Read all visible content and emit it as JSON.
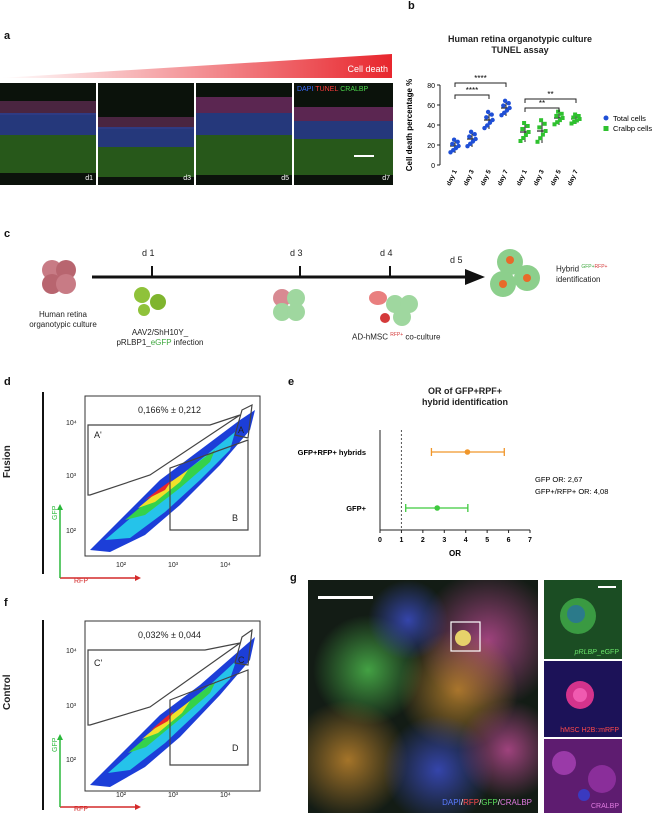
{
  "panels": {
    "a": "a",
    "b": "b",
    "c": "c",
    "d": "d",
    "e": "e",
    "f": "f",
    "g": "g"
  },
  "panel_a": {
    "gradient_label": "Cell death",
    "stain_dapi": "DAPI",
    "stain_tunel": "TUNEL",
    "stain_cralbp": "CRALBP",
    "days": [
      "d1",
      "d3",
      "d5",
      "d7"
    ],
    "colors": {
      "dapi": "#3b6cff",
      "tunel": "#ff3b3b",
      "cralbp": "#4ddc4d",
      "gradient": "#e8262d"
    }
  },
  "panel_b": {
    "title_line1": "Human retina organotypic culture",
    "title_line2": "TUNEL assay",
    "ylabel": "Cell death percentage %",
    "yticks": [
      "0",
      "20",
      "40",
      "60",
      "80"
    ],
    "categories": [
      "day 1",
      "day 3",
      "day 5",
      "day 7",
      "day 1",
      "day 3",
      "day 5",
      "day 7"
    ],
    "legend_total": "Total cells",
    "legend_cralbp": "Cralbp cells",
    "sig_1": "****",
    "sig_2": "****",
    "sig_3": "**",
    "sig_4": "**"
  },
  "chart_data": [
    {
      "type": "scatter",
      "title": "Human retina organotypic culture TUNEL assay",
      "ylabel": "Cell death percentage %",
      "ylim": [
        0,
        80
      ],
      "categories": [
        "day 1",
        "day 3",
        "day 5",
        "day 7",
        "day 1",
        "day 3",
        "day 5",
        "day 7"
      ],
      "series": [
        {
          "name": "Total cells",
          "color": "#1f4fd6",
          "means": [
            19,
            26,
            45,
            57
          ],
          "sd": [
            7,
            8,
            9,
            8
          ]
        },
        {
          "name": "Cralbp cells",
          "color": "#2ec12e",
          "means": [
            33,
            34,
            47,
            46
          ],
          "sd": [
            10,
            12,
            7,
            5
          ]
        }
      ]
    },
    {
      "type": "scatter",
      "title": "OR of GFP+RPF+ hybrid identification",
      "xlabel": "OR",
      "xlim": [
        0,
        7
      ],
      "xticks": [
        0,
        1,
        2,
        3,
        4,
        5,
        6,
        7
      ],
      "categories": [
        "GFP+RFP+ hybrids",
        "GFP+"
      ],
      "values": [
        4.08,
        2.67
      ],
      "ci": [
        [
          2.4,
          5.8
        ],
        [
          1.2,
          4.1
        ]
      ],
      "colors": [
        "#f0962a",
        "#3fc93f"
      ]
    }
  ],
  "panel_c": {
    "d1": "d 1",
    "d3": "d 3",
    "d4": "d 4",
    "d5": "d 5",
    "retina_label_1": "Human retina",
    "retina_label_2": "organotypic culture",
    "aav_label_1": "AAV2/ShH10Y_",
    "aav_label_2_pre": "pRLBP1_",
    "aav_label_2_egfp": "eGFP",
    "aav_label_2_post": " infection",
    "coculture_pre": "AD-hMSC ",
    "coculture_sup": "RFP+",
    "coculture_post": " co-culture",
    "hybrid_pre": "Hybrid ",
    "hybrid_gfp": "GFP+",
    "hybrid_rfp": "RFP+",
    "hybrid_line2": "identification"
  },
  "panel_d": {
    "side_label": "Fusion",
    "percent": "0,166% ± 0,212",
    "gate_a_prime": "A'",
    "gate_a": "A",
    "gate_b": "B",
    "x_axis": "RFP",
    "y_axis": "GFP",
    "ticks": [
      "10²",
      "10³",
      "10⁴"
    ]
  },
  "panel_e": {
    "title_line1": "OR of GFP+RPF+",
    "title_line2": "hybrid identification",
    "row1": "GFP+RFP+ hybrids",
    "row2": "GFP+",
    "note1": "GFP OR: 2,67",
    "note2": "GFP+/RFP+ OR: 4,08",
    "xlabel": "OR",
    "xticks": [
      "0",
      "1",
      "2",
      "3",
      "4",
      "5",
      "6",
      "7"
    ]
  },
  "panel_f": {
    "side_label": "Control",
    "percent": "0,032% ± 0,044",
    "gate_c_prime": "C'",
    "gate_c": "C",
    "gate_d": "D",
    "x_axis": "RFP",
    "y_axis": "GFP",
    "ticks": [
      "10²",
      "10³",
      "10⁴"
    ]
  },
  "panel_g": {
    "legend_dapi": "DAPI",
    "legend_rfp": "RFP",
    "legend_gfp": "GFP",
    "legend_cralbp": "CRALBP",
    "inset1_pre": "pRLBP",
    "inset1_post": "_eGFP",
    "inset2": "hMSC H2B::mRFP",
    "inset3": "CRALBP"
  }
}
